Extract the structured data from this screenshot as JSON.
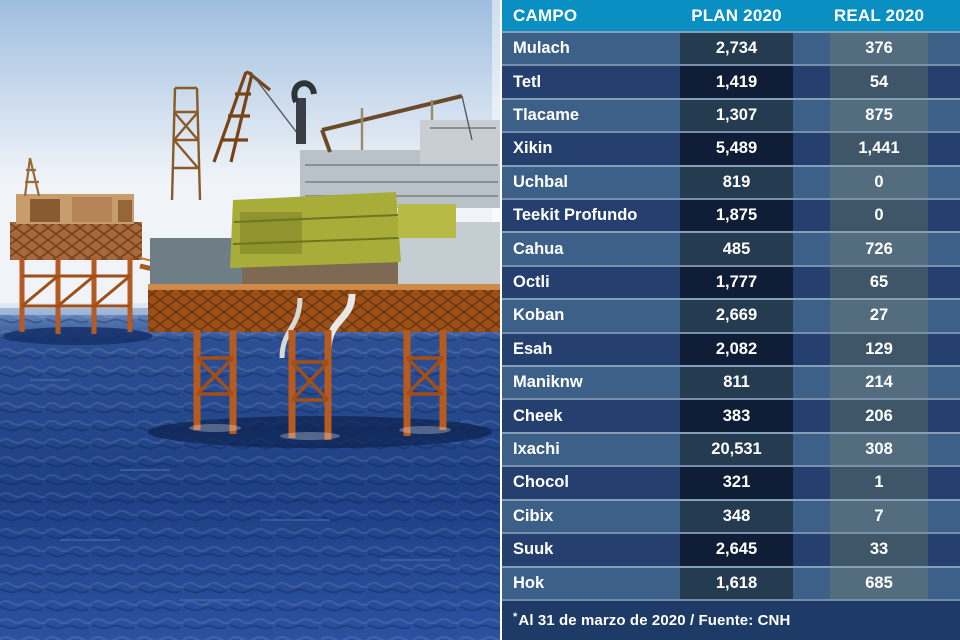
{
  "colors": {
    "header_bg": "#0a8fc3",
    "row_odd_bg": "#3c6088",
    "row_even_bg": "#25406e",
    "plan_cell_odd_bg": "#253b50",
    "plan_cell_even_bg": "#101d37",
    "real_cell_odd_bg": "#536c7e",
    "real_cell_even_bg": "#3f5668",
    "footer_bg": "#1e3a66",
    "row_separator": "#d0deea",
    "table_text": "#ffffff"
  },
  "photo": {
    "alt": "Offshore oil drilling platforms standing in a deep blue sea"
  },
  "chart_data": {
    "type": "table",
    "columns": [
      "CAMPO",
      "PLAN 2020",
      "REAL 2020"
    ],
    "rows": [
      [
        "Mulach",
        "2,734",
        "376"
      ],
      [
        "Tetl",
        "1,419",
        "54"
      ],
      [
        "Tlacame",
        "1,307",
        "875"
      ],
      [
        "Xikin",
        "5,489",
        "1,441"
      ],
      [
        "Uchbal",
        "819",
        "0"
      ],
      [
        "Teekit Profundo",
        "1,875",
        "0"
      ],
      [
        "Cahua",
        "485",
        "726"
      ],
      [
        "Octli",
        "1,777",
        "65"
      ],
      [
        "Koban",
        "2,669",
        "27"
      ],
      [
        "Esah",
        "2,082",
        "129"
      ],
      [
        "Maniknw",
        "811",
        "214"
      ],
      [
        "Cheek",
        "383",
        "206"
      ],
      [
        "Ixachi",
        "20,531",
        "308"
      ],
      [
        "Chocol",
        "321",
        "1"
      ],
      [
        "Cibix",
        "348",
        "7"
      ],
      [
        "Suuk",
        "2,645",
        "33"
      ],
      [
        "Hok",
        "1,618",
        "685"
      ]
    ],
    "footnote": "*Al 31 de marzo de 2020  / Fuente: CNH"
  },
  "footer": {
    "star": "*",
    "note": "Al 31 de marzo de 2020  / Fuente: CNH"
  }
}
